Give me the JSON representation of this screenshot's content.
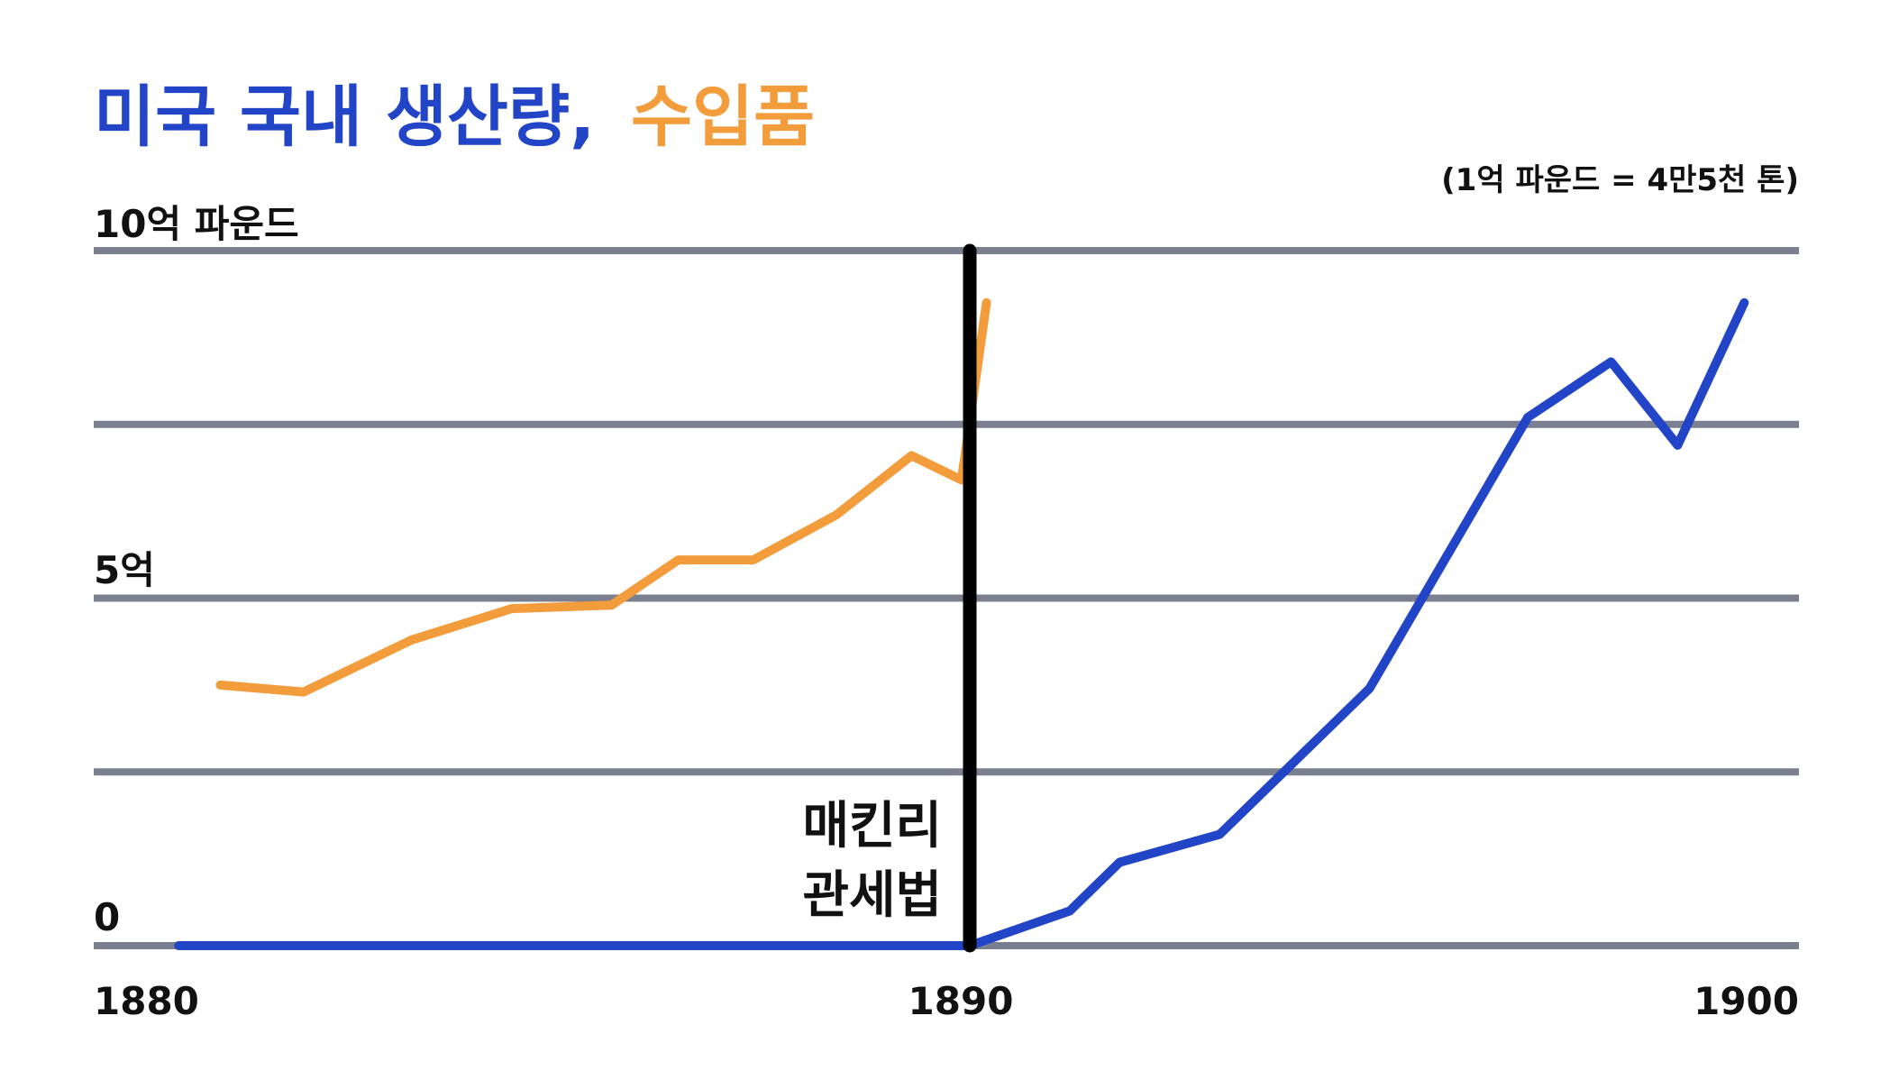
{
  "colors": {
    "domestic": "#2244c6",
    "imports": "#f39c3c",
    "grid": "#7b8090",
    "marker": "#000000",
    "text": "#111111"
  },
  "chart_data": {
    "type": "line",
    "title_part1": "미국 국내 생산량,",
    "title_part2": "수입품",
    "unit_note": "(1억 파운드 = 4만5천 톤)",
    "y_tick_labels": {
      "top": "10억 파운드",
      "mid": "5억",
      "zero": "0"
    },
    "x_tick_labels": [
      "1880",
      "1890",
      "1900"
    ],
    "xlim": [
      1880,
      1900
    ],
    "ylim": [
      0,
      10
    ],
    "y_grid": [
      0,
      2.5,
      5,
      7.5,
      10
    ],
    "annotation": {
      "line1": "매킨리",
      "line2": "관세법",
      "x": 1890
    },
    "series": [
      {
        "key": "imports",
        "x": [
          1881,
          1882,
          1883.3,
          1884.5,
          1885.7,
          1886.5,
          1887.4,
          1888.4,
          1889.3,
          1889.9,
          1890.2
        ],
        "values": [
          3.75,
          3.65,
          4.4,
          4.85,
          4.9,
          5.55,
          5.55,
          6.2,
          7.05,
          6.7,
          9.25
        ]
      },
      {
        "key": "domestic",
        "x": [
          1880.5,
          1890,
          1891.2,
          1891.8,
          1893,
          1894.8,
          1896.7,
          1897.7,
          1898.5,
          1899.3
        ],
        "values": [
          0,
          0,
          0.5,
          1.2,
          1.6,
          3.7,
          7.6,
          8.4,
          7.2,
          9.25
        ]
      }
    ]
  }
}
